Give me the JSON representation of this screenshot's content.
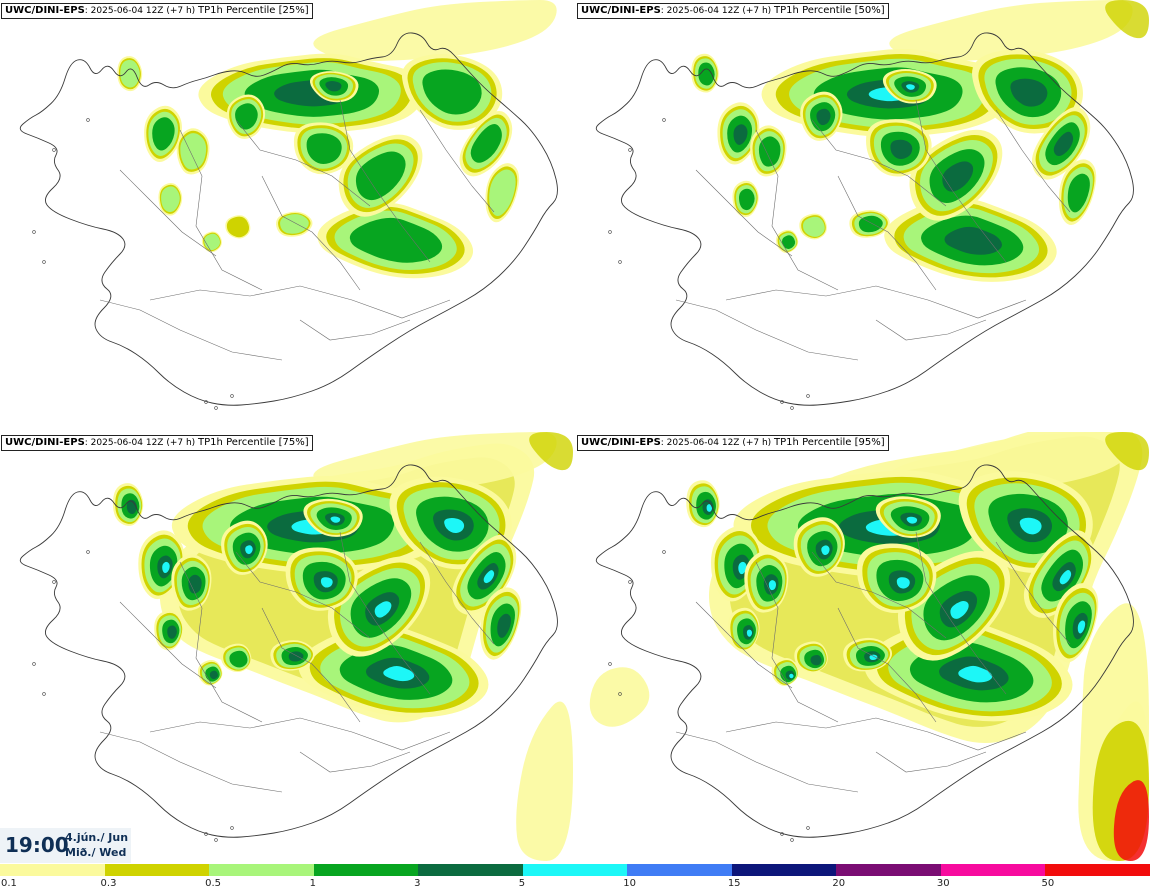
{
  "panels": [
    {
      "model": "UWC/DINI-EPS",
      "run": "2025-06-04 12Z (+7 h)",
      "variable": "TP1h Percentile [25%]"
    },
    {
      "model": "UWC/DINI-EPS",
      "run": "2025-06-04 12Z (+7 h)",
      "variable": "TP1h Percentile [50%]"
    },
    {
      "model": "UWC/DINI-EPS",
      "run": "2025-06-04 12Z (+7 h)",
      "variable": "TP1h Percentile [75%]"
    },
    {
      "model": "UWC/DINI-EPS",
      "run": "2025-06-04 12Z (+7 h)",
      "variable": "TP1h Percentile [95%]"
    }
  ],
  "valid_time": {
    "time": "19:00",
    "date_line1": "4.jún./ Jun",
    "date_line2": "Mið./ Wed"
  },
  "colorbar": {
    "thresholds": [
      "0.1",
      "0.3",
      "0.5",
      "1",
      "3",
      "5",
      "10",
      "15",
      "20",
      "30",
      "50"
    ],
    "colors": [
      "#fbfa9d",
      "#cfd300",
      "#a8f57a",
      "#07a520",
      "#0b6b3f",
      "#1df7f7",
      "#3f7cf5",
      "#0d167a",
      "#7a0d73",
      "#f70b9e",
      "#f20c0c"
    ]
  }
}
